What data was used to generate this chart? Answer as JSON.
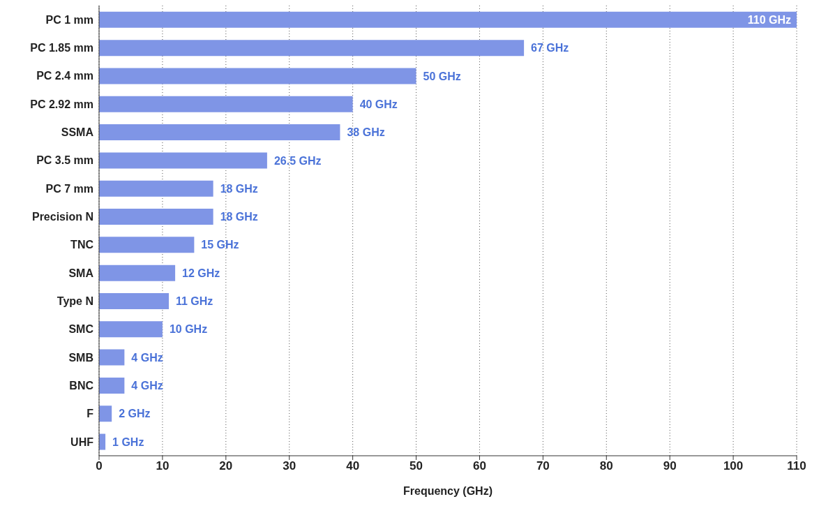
{
  "chart_data": {
    "type": "bar",
    "orientation": "horizontal",
    "xlabel": "Frequency (GHz)",
    "categories": [
      "PC 1 mm",
      "PC 1.85 mm",
      "PC 2.4 mm",
      "PC 2.92 mm",
      "SSMA",
      "PC 3.5 mm",
      "PC 7 mm",
      "Precision N",
      "TNC",
      "SMA",
      "Type N",
      "SMC",
      "SMB",
      "BNC",
      "F",
      "UHF"
    ],
    "values": [
      110,
      67,
      50,
      40,
      38,
      26.5,
      18,
      18,
      15,
      12,
      11,
      10,
      4,
      4,
      2,
      1
    ],
    "value_labels": [
      "110 GHz",
      "67 GHz",
      "50 GHz",
      "40 GHz",
      "38 GHz",
      "26.5 GHz",
      "18 GHz",
      "18 GHz",
      "15 GHz",
      "12 GHz",
      "11 GHz",
      "10 GHz",
      "4 GHz",
      "4 GHz",
      "2 GHz",
      "1 GHz"
    ],
    "color": "#7f95e6",
    "xlim": [
      0,
      110
    ],
    "xticks": [
      0,
      10,
      20,
      30,
      40,
      50,
      60,
      70,
      80,
      90,
      100,
      110
    ],
    "grid": "x"
  }
}
